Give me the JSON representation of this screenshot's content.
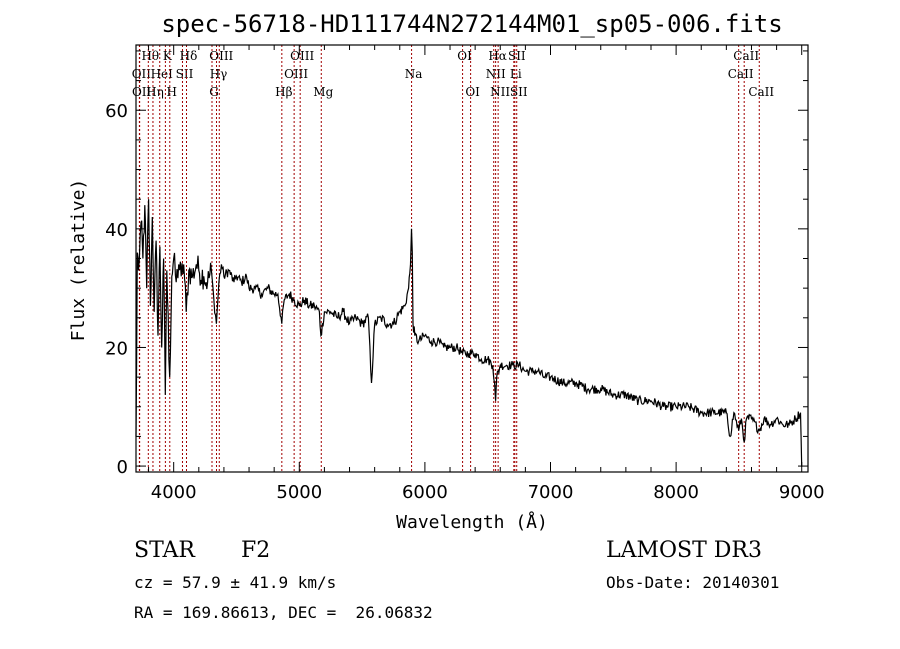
{
  "chart_data": {
    "type": "line",
    "title": "spec-56718-HD111744N272144M01_sp05-006.fits",
    "xlabel": "Wavelength (Å)",
    "ylabel": "Flux (relative)",
    "xlim": [
      3700,
      9050
    ],
    "ylim": [
      -1,
      71
    ],
    "xticks": [
      4000,
      5000,
      6000,
      7000,
      8000,
      9000
    ],
    "yticks": [
      0,
      20,
      40,
      60
    ],
    "xtick_labels": [
      "4000",
      "5000",
      "6000",
      "7000",
      "8000",
      "9000"
    ],
    "ytick_labels": [
      "0",
      "20",
      "40",
      "60"
    ],
    "grid": false,
    "series": [
      {
        "name": "flux",
        "color": "#000000",
        "points": [
          [
            3700,
            5
          ],
          [
            3705,
            17
          ],
          [
            3710,
            36
          ],
          [
            3720,
            33
          ],
          [
            3740,
            41
          ],
          [
            3755,
            35
          ],
          [
            3770,
            44
          ],
          [
            3785,
            30
          ],
          [
            3800,
            45
          ],
          [
            3815,
            27
          ],
          [
            3830,
            42
          ],
          [
            3845,
            26
          ],
          [
            3860,
            38
          ],
          [
            3875,
            22
          ],
          [
            3890,
            37
          ],
          [
            3905,
            20
          ],
          [
            3920,
            35
          ],
          [
            3933,
            12
          ],
          [
            3945,
            33
          ],
          [
            3968,
            15
          ],
          [
            3985,
            32
          ],
          [
            4000,
            35
          ],
          [
            4020,
            31
          ],
          [
            4040,
            34
          ],
          [
            4060,
            32
          ],
          [
            4080,
            34
          ],
          [
            4100,
            26
          ],
          [
            4120,
            33
          ],
          [
            4150,
            32
          ],
          [
            4180,
            34
          ],
          [
            4200,
            33
          ],
          [
            4240,
            32
          ],
          [
            4270,
            31
          ],
          [
            4300,
            33
          ],
          [
            4320,
            28
          ],
          [
            4340,
            24
          ],
          [
            4360,
            31
          ],
          [
            4380,
            34
          ],
          [
            4400,
            32
          ],
          [
            4440,
            33
          ],
          [
            4480,
            31
          ],
          [
            4500,
            32
          ],
          [
            4540,
            31
          ],
          [
            4580,
            32
          ],
          [
            4600,
            30
          ],
          [
            4650,
            30
          ],
          [
            4700,
            29
          ],
          [
            4750,
            30
          ],
          [
            4800,
            29
          ],
          [
            4830,
            29
          ],
          [
            4861,
            24
          ],
          [
            4880,
            28
          ],
          [
            4920,
            29
          ],
          [
            4960,
            28
          ],
          [
            5000,
            27
          ],
          [
            5040,
            28
          ],
          [
            5080,
            27
          ],
          [
            5120,
            27
          ],
          [
            5160,
            26
          ],
          [
            5172,
            22
          ],
          [
            5200,
            26
          ],
          [
            5250,
            26
          ],
          [
            5300,
            25
          ],
          [
            5350,
            26
          ],
          [
            5400,
            24
          ],
          [
            5450,
            25
          ],
          [
            5500,
            24
          ],
          [
            5550,
            25
          ],
          [
            5575,
            14
          ],
          [
            5600,
            24
          ],
          [
            5650,
            25
          ],
          [
            5700,
            24
          ],
          [
            5750,
            24
          ],
          [
            5800,
            26
          ],
          [
            5840,
            27
          ],
          [
            5870,
            30
          ],
          [
            5885,
            34
          ],
          [
            5893,
            40
          ],
          [
            5900,
            36
          ],
          [
            5905,
            24
          ],
          [
            5920,
            22
          ],
          [
            5950,
            21
          ],
          [
            6000,
            22
          ],
          [
            6050,
            21
          ],
          [
            6100,
            21
          ],
          [
            6150,
            20
          ],
          [
            6200,
            20
          ],
          [
            6250,
            20
          ],
          [
            6300,
            19
          ],
          [
            6350,
            19
          ],
          [
            6400,
            19
          ],
          [
            6450,
            18
          ],
          [
            6500,
            18
          ],
          [
            6540,
            17
          ],
          [
            6555,
            14
          ],
          [
            6563,
            11
          ],
          [
            6572,
            15
          ],
          [
            6600,
            17
          ],
          [
            6650,
            17
          ],
          [
            6700,
            17
          ],
          [
            6750,
            17
          ],
          [
            6800,
            16
          ],
          [
            6850,
            16
          ],
          [
            6900,
            16
          ],
          [
            6950,
            15
          ],
          [
            7000,
            15
          ],
          [
            7100,
            14
          ],
          [
            7200,
            14
          ],
          [
            7300,
            13
          ],
          [
            7400,
            13
          ],
          [
            7500,
            12
          ],
          [
            7600,
            12
          ],
          [
            7700,
            11
          ],
          [
            7800,
            11
          ],
          [
            7900,
            10
          ],
          [
            8000,
            10
          ],
          [
            8100,
            10
          ],
          [
            8200,
            9
          ],
          [
            8300,
            9
          ],
          [
            8400,
            9
          ],
          [
            8430,
            5
          ],
          [
            8460,
            9
          ],
          [
            8498,
            6
          ],
          [
            8520,
            8
          ],
          [
            8542,
            4
          ],
          [
            8560,
            8
          ],
          [
            8600,
            8
          ],
          [
            8662,
            6
          ],
          [
            8700,
            8
          ],
          [
            8750,
            7
          ],
          [
            8800,
            8
          ],
          [
            8850,
            7
          ],
          [
            8900,
            7
          ],
          [
            8950,
            8
          ],
          [
            8990,
            9
          ],
          [
            9000,
            0
          ],
          [
            9005,
            0
          ]
        ]
      }
    ],
    "line_markers": [
      {
        "name": "OII",
        "wavelength": 3727,
        "row": 1
      },
      {
        "name": "OII",
        "wavelength": 3729,
        "row": 2
      },
      {
        "name": "Hθ",
        "wavelength": 3798,
        "row": 0
      },
      {
        "name": "Hη",
        "wavelength": 3835,
        "row": 2
      },
      {
        "name": "HeI",
        "wavelength": 3889,
        "row": 1
      },
      {
        "name": "K",
        "wavelength": 3934,
        "row": 0
      },
      {
        "name": "H",
        "wavelength": 3969,
        "row": 2
      },
      {
        "name": "SII",
        "wavelength": 4070,
        "row": 1
      },
      {
        "name": "Hδ",
        "wavelength": 4102,
        "row": 0
      },
      {
        "name": "G",
        "wavelength": 4305,
        "row": 2
      },
      {
        "name": "Hγ",
        "wavelength": 4341,
        "row": 1
      },
      {
        "name": "OIII",
        "wavelength": 4363,
        "row": 0
      },
      {
        "name": "Hβ",
        "wavelength": 4861,
        "row": 2
      },
      {
        "name": "OIII",
        "wavelength": 4959,
        "row": 1
      },
      {
        "name": "OIII",
        "wavelength": 5007,
        "row": 0
      },
      {
        "name": "Mg",
        "wavelength": 5175,
        "row": 2
      },
      {
        "name": "Na",
        "wavelength": 5894,
        "row": 1
      },
      {
        "name": "OI",
        "wavelength": 6300,
        "row": 0
      },
      {
        "name": "OI",
        "wavelength": 6364,
        "row": 2
      },
      {
        "name": "NII",
        "wavelength": 6548,
        "row": 1
      },
      {
        "name": "Hα",
        "wavelength": 6563,
        "row": 0
      },
      {
        "name": "NII",
        "wavelength": 6583,
        "row": 2
      },
      {
        "name": "Li",
        "wavelength": 6708,
        "row": 1
      },
      {
        "name": "SII",
        "wavelength": 6716,
        "row": 0
      },
      {
        "name": "SII",
        "wavelength": 6731,
        "row": 2
      },
      {
        "name": "CaII",
        "wavelength": 8498,
        "row": 1
      },
      {
        "name": "CaII",
        "wavelength": 8542,
        "row": 0
      },
      {
        "name": "CaII",
        "wavelength": 8662,
        "row": 2
      }
    ]
  },
  "info": {
    "class": "STAR",
    "subclass": "F2",
    "survey": "LAMOST DR3",
    "cz": "cz = 57.9 ± 41.9 km/s",
    "obs_date": "Obs-Date: 20140301",
    "coords": "RA = 169.86613, DEC =  26.06832"
  },
  "colors": {
    "spectrum": "#000000",
    "line_marker": "#a00000",
    "axes": "#000000"
  }
}
